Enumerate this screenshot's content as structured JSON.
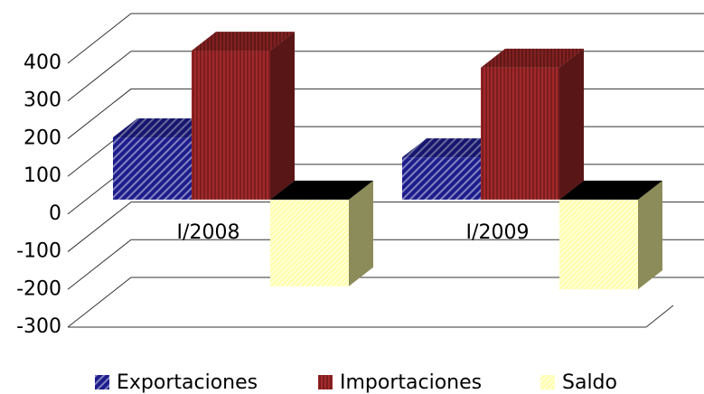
{
  "chart_data": {
    "type": "bar3d",
    "categories": [
      "I/2008",
      "I/2009"
    ],
    "series": [
      {
        "name": "Exportaciones",
        "color": "#1c1c8c",
        "values": [
          165,
          112
        ]
      },
      {
        "name": "Importaciones",
        "color": "#a3282a",
        "values": [
          395,
          350
        ]
      },
      {
        "name": "Saldo",
        "color": "#ffffa6",
        "values": [
          -230,
          -238
        ]
      }
    ],
    "ylim": [
      -300,
      400
    ],
    "yticks": [
      -300,
      -200,
      -100,
      0,
      100,
      200,
      300,
      400
    ],
    "grid": true
  }
}
